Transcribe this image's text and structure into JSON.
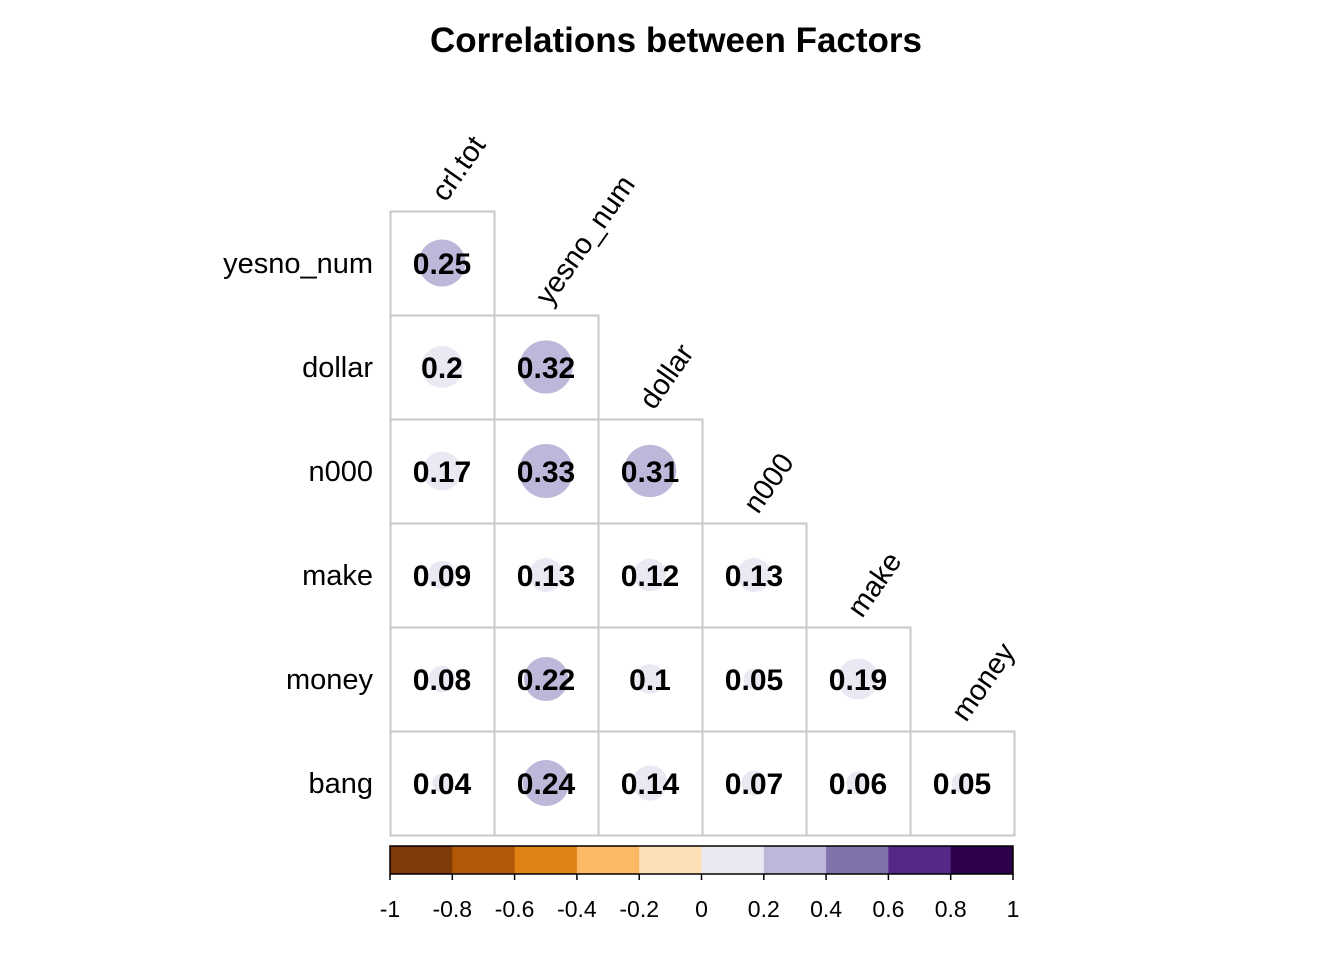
{
  "chart_data": {
    "type": "heatmap",
    "title": "Correlations between Factors",
    "variables": [
      "crl.tot",
      "yesno_num",
      "dollar",
      "n000",
      "make",
      "money",
      "bang"
    ],
    "row_labels": [
      "yesno_num",
      "dollar",
      "n000",
      "make",
      "money",
      "bang"
    ],
    "col_labels": [
      "crl.tot",
      "yesno_num",
      "dollar",
      "n000",
      "make",
      "money"
    ],
    "values": [
      [
        0.25
      ],
      [
        0.2,
        0.32
      ],
      [
        0.17,
        0.33,
        0.31
      ],
      [
        0.09,
        0.13,
        0.12,
        0.13
      ],
      [
        0.08,
        0.22,
        0.1,
        0.05,
        0.19
      ],
      [
        0.04,
        0.24,
        0.14,
        0.07,
        0.06,
        0.05
      ]
    ],
    "layout": "lower-triangle",
    "glyph": "circle",
    "colorbar": {
      "range": [
        -1,
        1
      ],
      "ticks": [
        "-1",
        "-0.8",
        "-0.6",
        "-0.4",
        "-0.2",
        "0",
        "0.2",
        "0.4",
        "0.6",
        "0.8",
        "1"
      ],
      "colors": [
        "#7f3b08",
        "#b35806",
        "#e08214",
        "#fdb863",
        "#fee0b6",
        "#ebe8f3",
        "#bdb8d9",
        "#8073ac",
        "#542788",
        "#2d004b"
      ]
    }
  }
}
